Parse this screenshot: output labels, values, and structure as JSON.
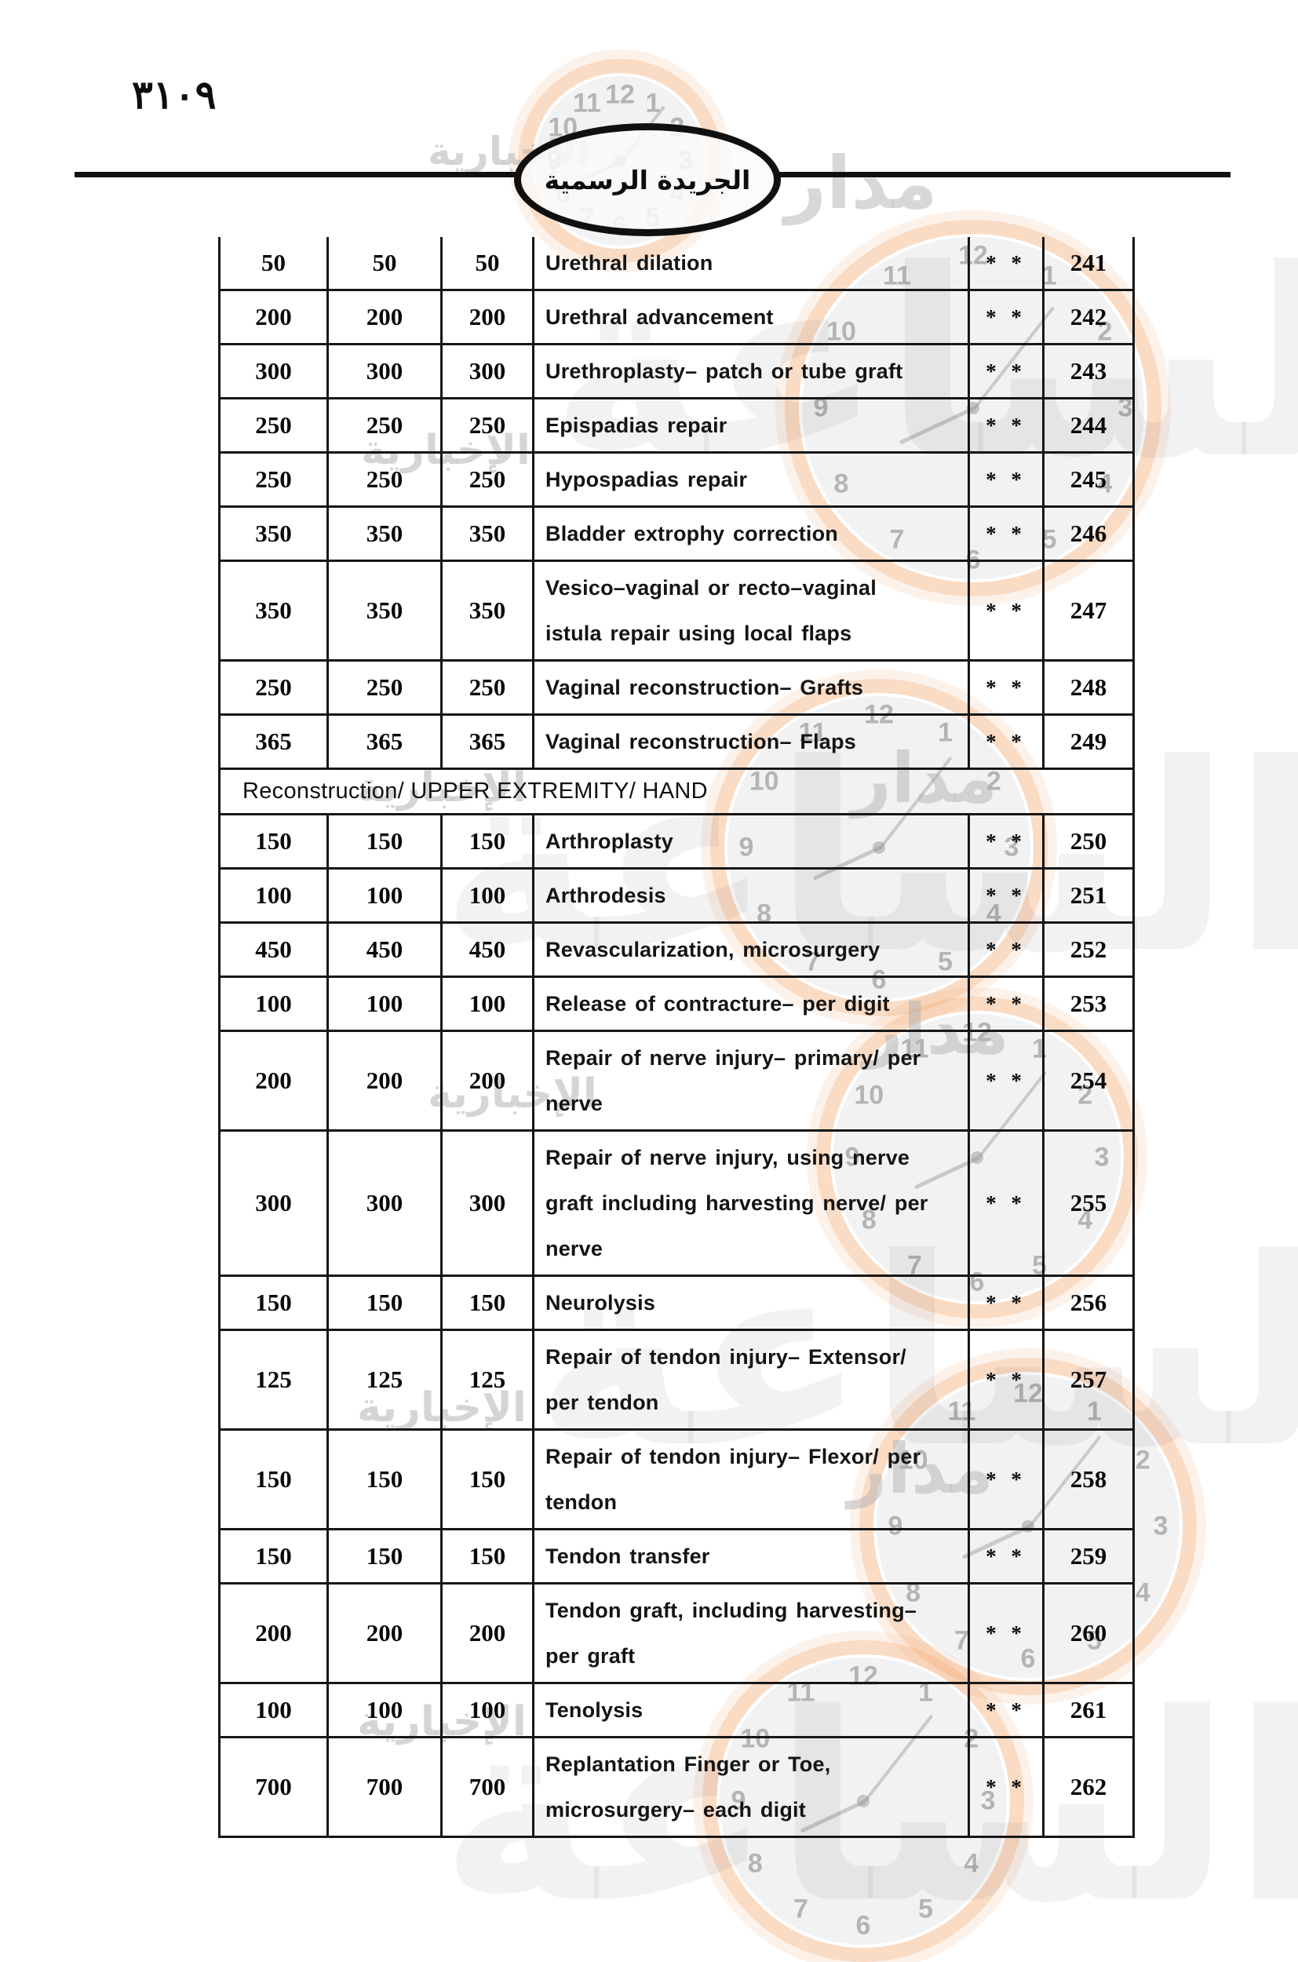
{
  "page": {
    "number": "٣١٠٩",
    "masthead": "الجريدة الرسمية"
  },
  "watermark": {
    "brand_word_1": "مدار",
    "brand_word_2": "الساعة",
    "brand_word_3": "الإخبارية",
    "clock_numbers": [
      "12",
      "1",
      "2",
      "3",
      "4",
      "5",
      "6",
      "7",
      "8",
      "9",
      "10",
      "11"
    ],
    "ring_color": "#f3a66c"
  },
  "table": {
    "stars": "* *",
    "section_header": "Reconstruction/ UPPER EXTREMITY/ HAND",
    "rows": [
      {
        "type": "fee",
        "fees": [
          "50",
          "50",
          "50"
        ],
        "desc": [
          "Urethral dilation"
        ],
        "code": "241"
      },
      {
        "type": "fee",
        "fees": [
          "200",
          "200",
          "200"
        ],
        "desc": [
          "Urethral advancement"
        ],
        "code": "242"
      },
      {
        "type": "fee",
        "fees": [
          "300",
          "300",
          "300"
        ],
        "desc": [
          "Urethroplasty– patch or tube graft"
        ],
        "code": "243"
      },
      {
        "type": "fee",
        "fees": [
          "250",
          "250",
          "250"
        ],
        "desc": [
          "Epispadias repair"
        ],
        "code": "244"
      },
      {
        "type": "fee",
        "fees": [
          "250",
          "250",
          "250"
        ],
        "desc": [
          "Hypospadias repair"
        ],
        "code": "245"
      },
      {
        "type": "fee",
        "fees": [
          "350",
          "350",
          "350"
        ],
        "desc": [
          "Bladder extrophy correction"
        ],
        "code": "246"
      },
      {
        "type": "fee",
        "fees": [
          "350",
          "350",
          "350"
        ],
        "desc": [
          "Vesico–vaginal or recto–vaginal",
          "istula repair using local flaps"
        ],
        "code": "247"
      },
      {
        "type": "fee",
        "fees": [
          "250",
          "250",
          "250"
        ],
        "desc": [
          "Vaginal reconstruction– Grafts"
        ],
        "code": "248"
      },
      {
        "type": "fee",
        "fees": [
          "365",
          "365",
          "365"
        ],
        "desc": [
          "Vaginal reconstruction– Flaps"
        ],
        "code": "249"
      },
      {
        "type": "section",
        "label": "Reconstruction/ UPPER EXTREMITY/ HAND"
      },
      {
        "type": "fee",
        "fees": [
          "150",
          "150",
          "150"
        ],
        "desc": [
          "Arthroplasty"
        ],
        "code": "250"
      },
      {
        "type": "fee",
        "fees": [
          "100",
          "100",
          "100"
        ],
        "desc": [
          "Arthrodesis"
        ],
        "code": "251"
      },
      {
        "type": "fee",
        "fees": [
          "450",
          "450",
          "450"
        ],
        "desc": [
          "Revascularization, microsurgery"
        ],
        "code": "252"
      },
      {
        "type": "fee",
        "fees": [
          "100",
          "100",
          "100"
        ],
        "desc": [
          "Release of contracture– per digit"
        ],
        "code": "253"
      },
      {
        "type": "fee",
        "fees": [
          "200",
          "200",
          "200"
        ],
        "desc": [
          "Repair of nerve injury– primary/ per",
          "nerve"
        ],
        "code": "254"
      },
      {
        "type": "fee",
        "fees": [
          "300",
          "300",
          "300"
        ],
        "desc": [
          "Repair of nerve injury, using nerve",
          "graft including harvesting nerve/ per",
          "nerve"
        ],
        "code": "255"
      },
      {
        "type": "fee",
        "fees": [
          "150",
          "150",
          "150"
        ],
        "desc": [
          "Neurolysis"
        ],
        "code": "256"
      },
      {
        "type": "fee",
        "fees": [
          "125",
          "125",
          "125"
        ],
        "desc": [
          "Repair of tendon injury– Extensor/",
          "per tendon"
        ],
        "code": "257"
      },
      {
        "type": "fee",
        "fees": [
          "150",
          "150",
          "150"
        ],
        "desc": [
          "Repair of tendon injury– Flexor/ per",
          "tendon"
        ],
        "code": "258"
      },
      {
        "type": "fee",
        "fees": [
          "150",
          "150",
          "150"
        ],
        "desc": [
          "Tendon transfer"
        ],
        "code": "259"
      },
      {
        "type": "fee",
        "fees": [
          "200",
          "200",
          "200"
        ],
        "desc": [
          "Tendon graft, including harvesting–",
          "per graft"
        ],
        "code": "260"
      },
      {
        "type": "fee",
        "fees": [
          "100",
          "100",
          "100"
        ],
        "desc": [
          "Tenolysis"
        ],
        "code": "261"
      },
      {
        "type": "fee",
        "fees": [
          "700",
          "700",
          "700"
        ],
        "desc": [
          "Replantation Finger or Toe,",
          "microsurgery– each digit"
        ],
        "code": "262"
      }
    ]
  }
}
